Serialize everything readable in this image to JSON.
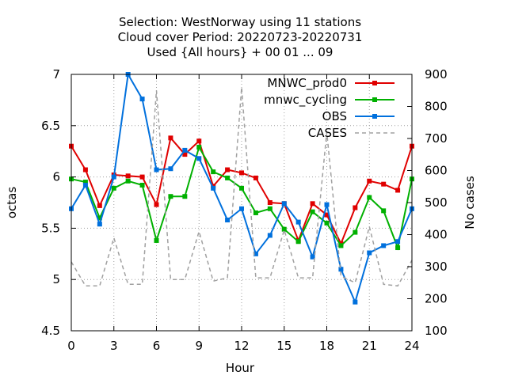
{
  "chart_data": {
    "type": "line",
    "title_lines": [
      "Selection: WestNorway using    11 stations",
      "Cloud cover   Period: 20220723-20220731",
      "Used {All hours} + 00 01 ... 09"
    ],
    "xlabel": "Hour",
    "ylabel": "octas",
    "y2label": "No cases",
    "xlim": [
      0,
      24
    ],
    "ylim": [
      4.5,
      7
    ],
    "y2lim": [
      100,
      900
    ],
    "x_ticks": [
      0,
      3,
      6,
      9,
      12,
      15,
      18,
      21,
      24
    ],
    "y_ticks": [
      "4.5",
      "5",
      "5.5",
      "6",
      "6.5",
      "7"
    ],
    "y2_ticks": [
      "100",
      "200",
      "300",
      "400",
      "500",
      "600",
      "700",
      "800",
      "900"
    ],
    "x": [
      0,
      1,
      2,
      3,
      4,
      5,
      6,
      7,
      8,
      9,
      10,
      11,
      12,
      13,
      14,
      15,
      16,
      17,
      18,
      19,
      20,
      21,
      22,
      23,
      24
    ],
    "series": [
      {
        "name": "MNWC_prod0",
        "color": "#e00000",
        "axis": "y",
        "values": [
          6.3,
          6.07,
          5.72,
          6.02,
          6.01,
          6.0,
          5.73,
          6.38,
          6.22,
          6.35,
          5.91,
          6.07,
          6.04,
          5.99,
          5.75,
          5.74,
          5.38,
          5.74,
          5.63,
          5.35,
          5.7,
          5.96,
          5.93,
          5.87,
          6.3
        ]
      },
      {
        "name": "mnwc_cycling",
        "color": "#00b000",
        "axis": "y",
        "values": [
          5.98,
          5.95,
          5.6,
          5.89,
          5.96,
          5.92,
          5.38,
          5.81,
          5.81,
          6.29,
          6.05,
          5.99,
          5.89,
          5.65,
          5.69,
          5.49,
          5.37,
          5.66,
          5.55,
          5.33,
          5.46,
          5.8,
          5.67,
          5.31,
          5.98
        ]
      },
      {
        "name": "OBS",
        "color": "#0070dd",
        "axis": "y",
        "values": [
          5.69,
          5.92,
          5.54,
          6.0,
          7.0,
          6.76,
          6.07,
          6.08,
          6.26,
          6.18,
          5.89,
          5.58,
          5.69,
          5.25,
          5.43,
          5.74,
          5.56,
          5.22,
          5.73,
          5.1,
          4.78,
          5.26,
          5.33,
          5.37,
          5.69
        ]
      },
      {
        "name": "CASES",
        "color": "#a0a0a0",
        "axis": "y2",
        "dashed": true,
        "values": [
          315,
          240,
          240,
          390,
          245,
          245,
          850,
          260,
          260,
          410,
          255,
          265,
          860,
          265,
          265,
          415,
          265,
          265,
          720,
          270,
          250,
          425,
          245,
          240,
          320
        ]
      }
    ],
    "legend_position": "top-right",
    "grid": true
  }
}
